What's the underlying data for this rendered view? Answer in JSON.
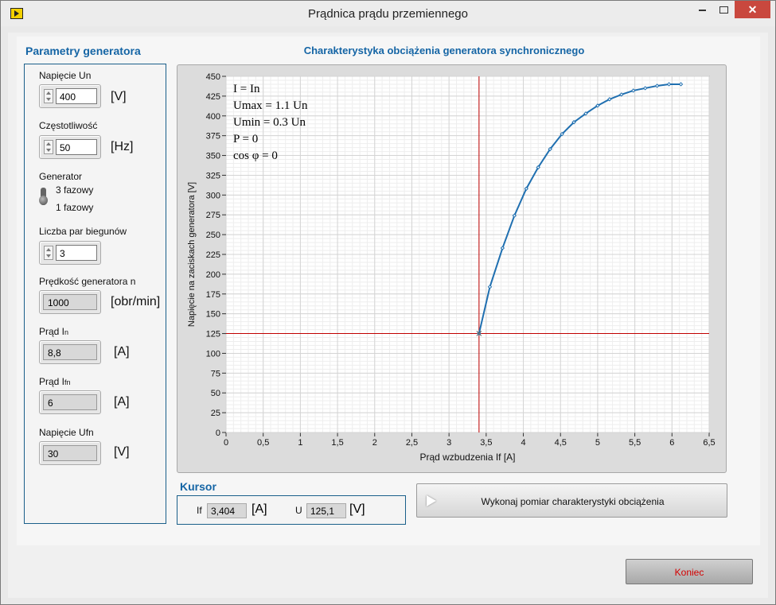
{
  "window": {
    "title": "Prądnica prądu przemiennego",
    "min_icon": "minimize-icon",
    "max_icon": "maximize-icon",
    "close_label": "✕"
  },
  "params": {
    "title": "Parametry generatora",
    "voltage_un": {
      "label": "Napięcie Un",
      "value": "400",
      "unit": "[V]"
    },
    "frequency": {
      "label": "Częstotliwość",
      "value": "50",
      "unit": "[Hz]"
    },
    "generator": {
      "label": "Generator",
      "option_a": "3 fazowy",
      "option_b": "1 fazowy"
    },
    "pole_pairs": {
      "label": "Liczba par biegunów",
      "value": "3"
    },
    "speed": {
      "label": "Prędkość generatora n",
      "value": "1000",
      "unit": "[obr/min]"
    },
    "current_in": {
      "label_main": "Prąd I",
      "label_sub": "n",
      "value": "8,8",
      "unit": "[A]"
    },
    "current_ifn": {
      "label_main": "Prąd I",
      "label_sub": "fn",
      "value": "6",
      "unit": "[A]"
    },
    "voltage_ufn": {
      "label": "Napięcie Ufn",
      "value": "30",
      "unit": "[V]"
    }
  },
  "chart_title": "Charakterystyka obciążenia generatora synchronicznego",
  "chart_data": {
    "type": "line",
    "xlabel": "Prąd wzbudzenia If [A]",
    "ylabel": "Napięcie na zaciskach generatora [V]",
    "xlim": [
      0,
      6.5
    ],
    "ylim": [
      0,
      450
    ],
    "xticks": [
      "0",
      "0,5",
      "1",
      "1,5",
      "2",
      "2,5",
      "3",
      "3,5",
      "4",
      "4,5",
      "5",
      "5,5",
      "6",
      "6,5"
    ],
    "yticks": [
      "0",
      "25",
      "50",
      "75",
      "100",
      "125",
      "150",
      "175",
      "200",
      "225",
      "250",
      "275",
      "300",
      "325",
      "350",
      "375",
      "400",
      "425",
      "450"
    ],
    "grid": true,
    "x": [
      3.404,
      3.55,
      3.72,
      3.88,
      4.04,
      4.2,
      4.36,
      4.52,
      4.68,
      4.84,
      5.0,
      5.16,
      5.32,
      5.48,
      5.64,
      5.8,
      5.96,
      6.12
    ],
    "y": [
      125.1,
      184,
      233,
      274,
      308,
      335,
      358,
      377,
      392,
      403,
      413,
      421,
      427,
      432,
      435,
      438,
      440,
      440
    ],
    "series_color": "#1f6fb0",
    "cursor_color": "#c00000",
    "cursor": {
      "x": 3.404,
      "y": 125.1
    },
    "annotations": [
      "I = In",
      "Umax = 1.1 Un",
      "Umin = 0.3 Un",
      "P = 0",
      "cos φ = 0"
    ]
  },
  "cursor": {
    "title": "Kursor",
    "if_label": "If",
    "if_value": "3,404",
    "if_unit": "[A]",
    "u_label": "U",
    "u_value": "125,1",
    "u_unit": "[V]"
  },
  "buttons": {
    "measure": "Wykonaj pomiar charakterystyki obciążenia",
    "end": "Koniec"
  }
}
